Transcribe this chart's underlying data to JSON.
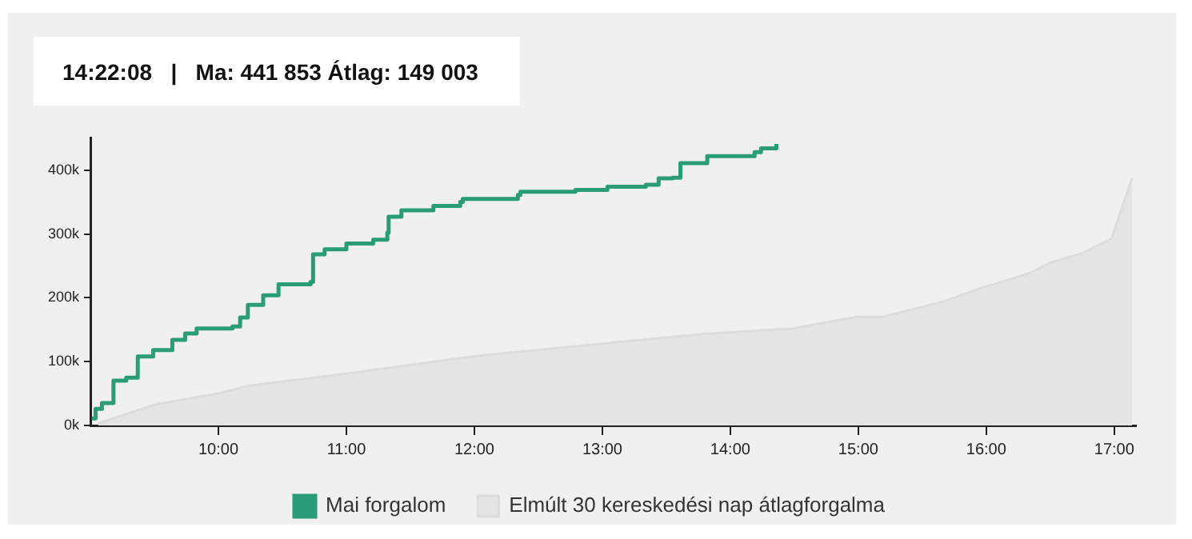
{
  "chart_data": {
    "type": "step",
    "title": "14:22:08   |   Ma: 441 853 Átlag: 149 003",
    "xlim": [
      9,
      17.17
    ],
    "xticks": [
      {
        "value": 10,
        "label": "10:00"
      },
      {
        "value": 11,
        "label": "11:00"
      },
      {
        "value": 12,
        "label": "12:00"
      },
      {
        "value": 13,
        "label": "13:00"
      },
      {
        "value": 14,
        "label": "14:00"
      },
      {
        "value": 15,
        "label": "15:00"
      },
      {
        "value": 16,
        "label": "16:00"
      },
      {
        "value": 17,
        "label": "17:00"
      }
    ],
    "ylim": [
      0,
      450000
    ],
    "yticks": [
      {
        "value": 0,
        "label": "0k"
      },
      {
        "value": 100000,
        "label": "100k"
      },
      {
        "value": 200000,
        "label": "200k"
      },
      {
        "value": 300000,
        "label": "300k"
      },
      {
        "value": 400000,
        "label": "400k"
      }
    ],
    "grid": false,
    "legend": "bottom",
    "marker": "none",
    "series": [
      {
        "name": "Mai forgalom",
        "color": "#2a9d78",
        "x": [
          9.01,
          9.04,
          9.09,
          9.18,
          9.28,
          9.37,
          9.49,
          9.64,
          9.74,
          9.83,
          10.11,
          10.17,
          10.23,
          10.35,
          10.47,
          10.72,
          10.74,
          10.83,
          11.0,
          11.21,
          11.32,
          11.33,
          11.43,
          11.68,
          11.89,
          11.91,
          12.34,
          12.36,
          12.79,
          13.04,
          13.34,
          13.44,
          13.55,
          13.61,
          13.82,
          14.19,
          14.24,
          14.36
        ],
        "values": [
          11000,
          26000,
          35000,
          70000,
          75000,
          108000,
          118000,
          134000,
          144000,
          152000,
          155000,
          169000,
          189000,
          204000,
          221000,
          225000,
          268000,
          276000,
          285000,
          291000,
          302000,
          327000,
          337000,
          344000,
          350000,
          355000,
          361000,
          366000,
          369000,
          374000,
          377000,
          387000,
          388000,
          411000,
          422000,
          428000,
          434000,
          441000
        ]
      },
      {
        "name": "Elmúlt 30 kereskedési nap átlagforgalma",
        "type": "area",
        "color": "#e4e4e4",
        "x": [
          9.06,
          9.51,
          10.0,
          10.23,
          11.0,
          12.02,
          12.94,
          13.78,
          14.49,
          14.99,
          15.19,
          15.66,
          15.99,
          16.33,
          16.5,
          16.75,
          16.98,
          17.14
        ],
        "values": [
          3000,
          33000,
          50000,
          62000,
          81000,
          109000,
          127000,
          143000,
          152000,
          170000,
          170000,
          194000,
          217000,
          238000,
          255000,
          270000,
          293000,
          388000
        ]
      }
    ]
  }
}
